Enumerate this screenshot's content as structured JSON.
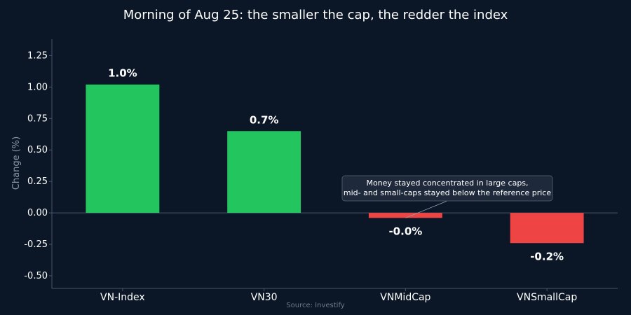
{
  "chart_data": {
    "type": "bar",
    "title": "Morning of Aug 25: the smaller the cap, the redder the index",
    "xlabel": "",
    "ylabel": "Change (%)",
    "categories": [
      "VN-Index",
      "VN30",
      "VNMidCap",
      "VNSmallCap"
    ],
    "values": [
      1.02,
      0.65,
      -0.04,
      -0.24
    ],
    "data_labels": [
      "1.0%",
      "0.7%",
      "-0.0%",
      "-0.2%"
    ],
    "ylim": [
      -0.6,
      1.38
    ],
    "yticks": [
      -0.5,
      -0.25,
      0.0,
      0.25,
      0.5,
      0.75,
      1.0,
      1.25
    ],
    "ytick_labels": [
      "-0.50",
      "-0.25",
      "0.00",
      "0.25",
      "0.50",
      "0.75",
      "1.00",
      "1.25"
    ],
    "grid": false,
    "colors": {
      "positive": "#22c55e",
      "negative": "#ef4444",
      "background": "#0b1627",
      "axis": "#4a5568"
    },
    "annotation": {
      "lines": [
        "Money stayed concentrated in large caps,",
        "mid- and small-caps stayed below the reference price"
      ],
      "target_category": "VNMidCap",
      "target_value": -0.04
    },
    "source": "Source: Investify"
  }
}
